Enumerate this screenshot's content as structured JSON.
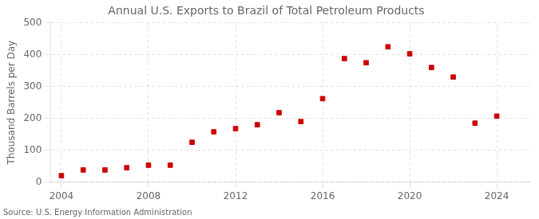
{
  "chart_data": {
    "type": "scatter",
    "title": "Annual U.S. Exports to Brazil of Total Petroleum Products",
    "ylabel": "Thousand Barrels per Day",
    "annotation": "Source: U.S. Energy Information Administration",
    "x": [
      2004,
      2005,
      2006,
      2007,
      2008,
      2009,
      2010,
      2011,
      2012,
      2013,
      2014,
      2015,
      2016,
      2017,
      2018,
      2019,
      2020,
      2021,
      2022,
      2023,
      2024
    ],
    "values": [
      20,
      38,
      38,
      45,
      53,
      53,
      125,
      158,
      168,
      180,
      218,
      190,
      262,
      388,
      375,
      425,
      403,
      360,
      330,
      185,
      207
    ],
    "color": "#cc0000",
    "marker": "square",
    "xlim": [
      2003.5,
      2025.5
    ],
    "xticks": [
      2004,
      2008,
      2012,
      2016,
      2020,
      2024
    ],
    "ylim": [
      0,
      500
    ],
    "yticks": [
      0,
      100,
      200,
      300,
      400,
      500
    ],
    "grid": true
  }
}
